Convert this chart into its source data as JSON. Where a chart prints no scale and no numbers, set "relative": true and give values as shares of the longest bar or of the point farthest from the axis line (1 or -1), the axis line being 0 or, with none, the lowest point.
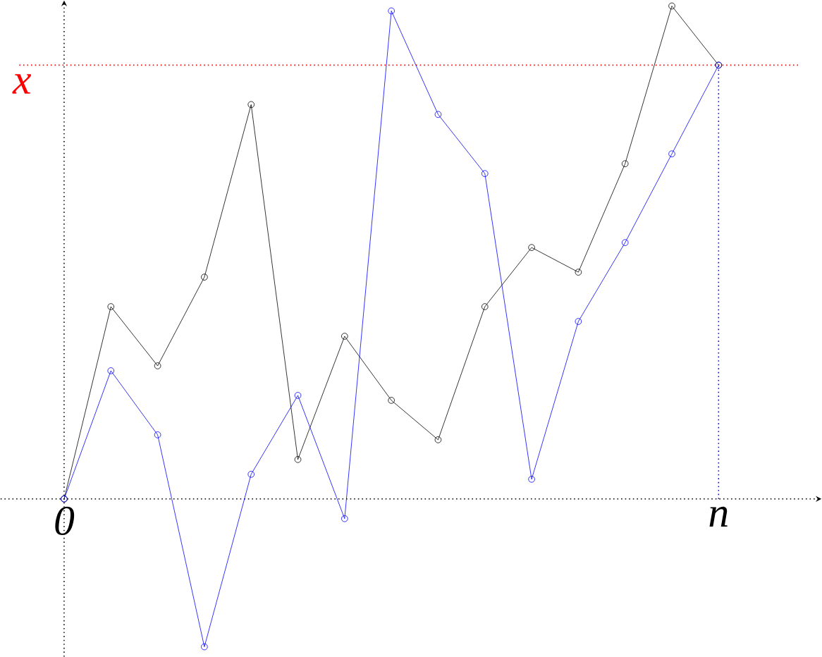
{
  "chart_data": {
    "type": "line",
    "relative": true,
    "marker": "circle",
    "line_style": "solid",
    "categories": [
      "0",
      null,
      null,
      null,
      null,
      null,
      null,
      null,
      null,
      null,
      null,
      null,
      null,
      null,
      "n"
    ],
    "series": [
      {
        "color": "#000000",
        "values": [
          0,
          0.39,
          0.27,
          0.45,
          0.8,
          0.08,
          0.33,
          0.2,
          0.12,
          0.39,
          0.51,
          0.46,
          0.68,
          1,
          0.88
        ]
      },
      {
        "color": "#0000ff",
        "values": [
          0,
          0.26,
          0.13,
          -0.3,
          0.05,
          0.21,
          -0.04,
          0.99,
          0.78,
          0.66,
          0.04,
          0.36,
          0.52,
          0.7,
          0.88
        ]
      }
    ],
    "ref_lines": [
      {
        "axis": "y",
        "value": 0.88,
        "label": "x",
        "color": "#ff0000",
        "line_style": "dotted"
      }
    ]
  }
}
